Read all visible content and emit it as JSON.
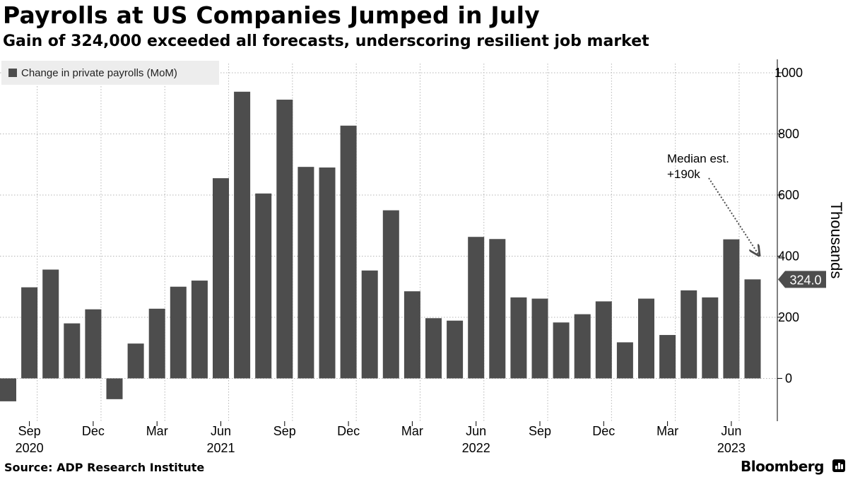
{
  "header": {
    "title": "Payrolls at US Companies Jumped in July",
    "subtitle": "Gain of 324,000 exceeded all forecasts, underscoring resilient job market"
  },
  "legend": {
    "label": "Change in private payrolls (MoM)"
  },
  "footer": {
    "source": "Source: ADP Research Institute",
    "brand": "Bloomberg"
  },
  "colors": {
    "bar": "#4d4d4d",
    "grid": "#b5b5b5",
    "callout": "#4d4d4d"
  },
  "chart_data": {
    "type": "bar",
    "x": [
      "2020-08",
      "2020-09",
      "2020-10",
      "2020-11",
      "2020-12",
      "2021-01",
      "2021-02",
      "2021-03",
      "2021-04",
      "2021-05",
      "2021-06",
      "2021-07",
      "2021-08",
      "2021-09",
      "2021-10",
      "2021-11",
      "2021-12",
      "2022-01",
      "2022-02",
      "2022-03",
      "2022-04",
      "2022-05",
      "2022-06",
      "2022-07",
      "2022-08",
      "2022-09",
      "2022-10",
      "2022-11",
      "2022-12",
      "2023-01",
      "2023-02",
      "2023-03",
      "2023-04",
      "2023-05",
      "2023-06",
      "2023-07"
    ],
    "series": [
      {
        "name": "Change in private payrolls (MoM)",
        "values": [
          -75,
          298,
          356,
          180,
          226,
          -68,
          114,
          228,
          300,
          320,
          655,
          938,
          605,
          912,
          692,
          690,
          827,
          353,
          550,
          285,
          197,
          189,
          463,
          456,
          265,
          261,
          183,
          210,
          252,
          118,
          261,
          142,
          288,
          265,
          455,
          324
        ]
      }
    ],
    "x_tick_labels": [
      {
        "x": "2020-09",
        "month": "Sep",
        "year": "2020"
      },
      {
        "x": "2020-12",
        "month": "Dec",
        "year": ""
      },
      {
        "x": "2021-03",
        "month": "Mar",
        "year": ""
      },
      {
        "x": "2021-06",
        "month": "Jun",
        "year": "2021"
      },
      {
        "x": "2021-09",
        "month": "Sep",
        "year": ""
      },
      {
        "x": "2021-12",
        "month": "Dec",
        "year": ""
      },
      {
        "x": "2022-03",
        "month": "Mar",
        "year": ""
      },
      {
        "x": "2022-06",
        "month": "Jun",
        "year": "2022"
      },
      {
        "x": "2022-09",
        "month": "Sep",
        "year": ""
      },
      {
        "x": "2022-12",
        "month": "Dec",
        "year": ""
      },
      {
        "x": "2023-03",
        "month": "Mar",
        "year": ""
      },
      {
        "x": "2023-06",
        "month": "Jun",
        "year": "2023"
      }
    ],
    "y_ticks": [
      0,
      200,
      400,
      600,
      800,
      1000
    ],
    "ylim": [
      -140,
      1030
    ],
    "ylabel": "Thousands",
    "y_axis_side": "right",
    "grid": "dotted",
    "last_value_label": "324.0",
    "annotations": [
      {
        "text_lines": [
          "Median est.",
          "+190k"
        ],
        "target_x": "2023-07"
      }
    ]
  }
}
